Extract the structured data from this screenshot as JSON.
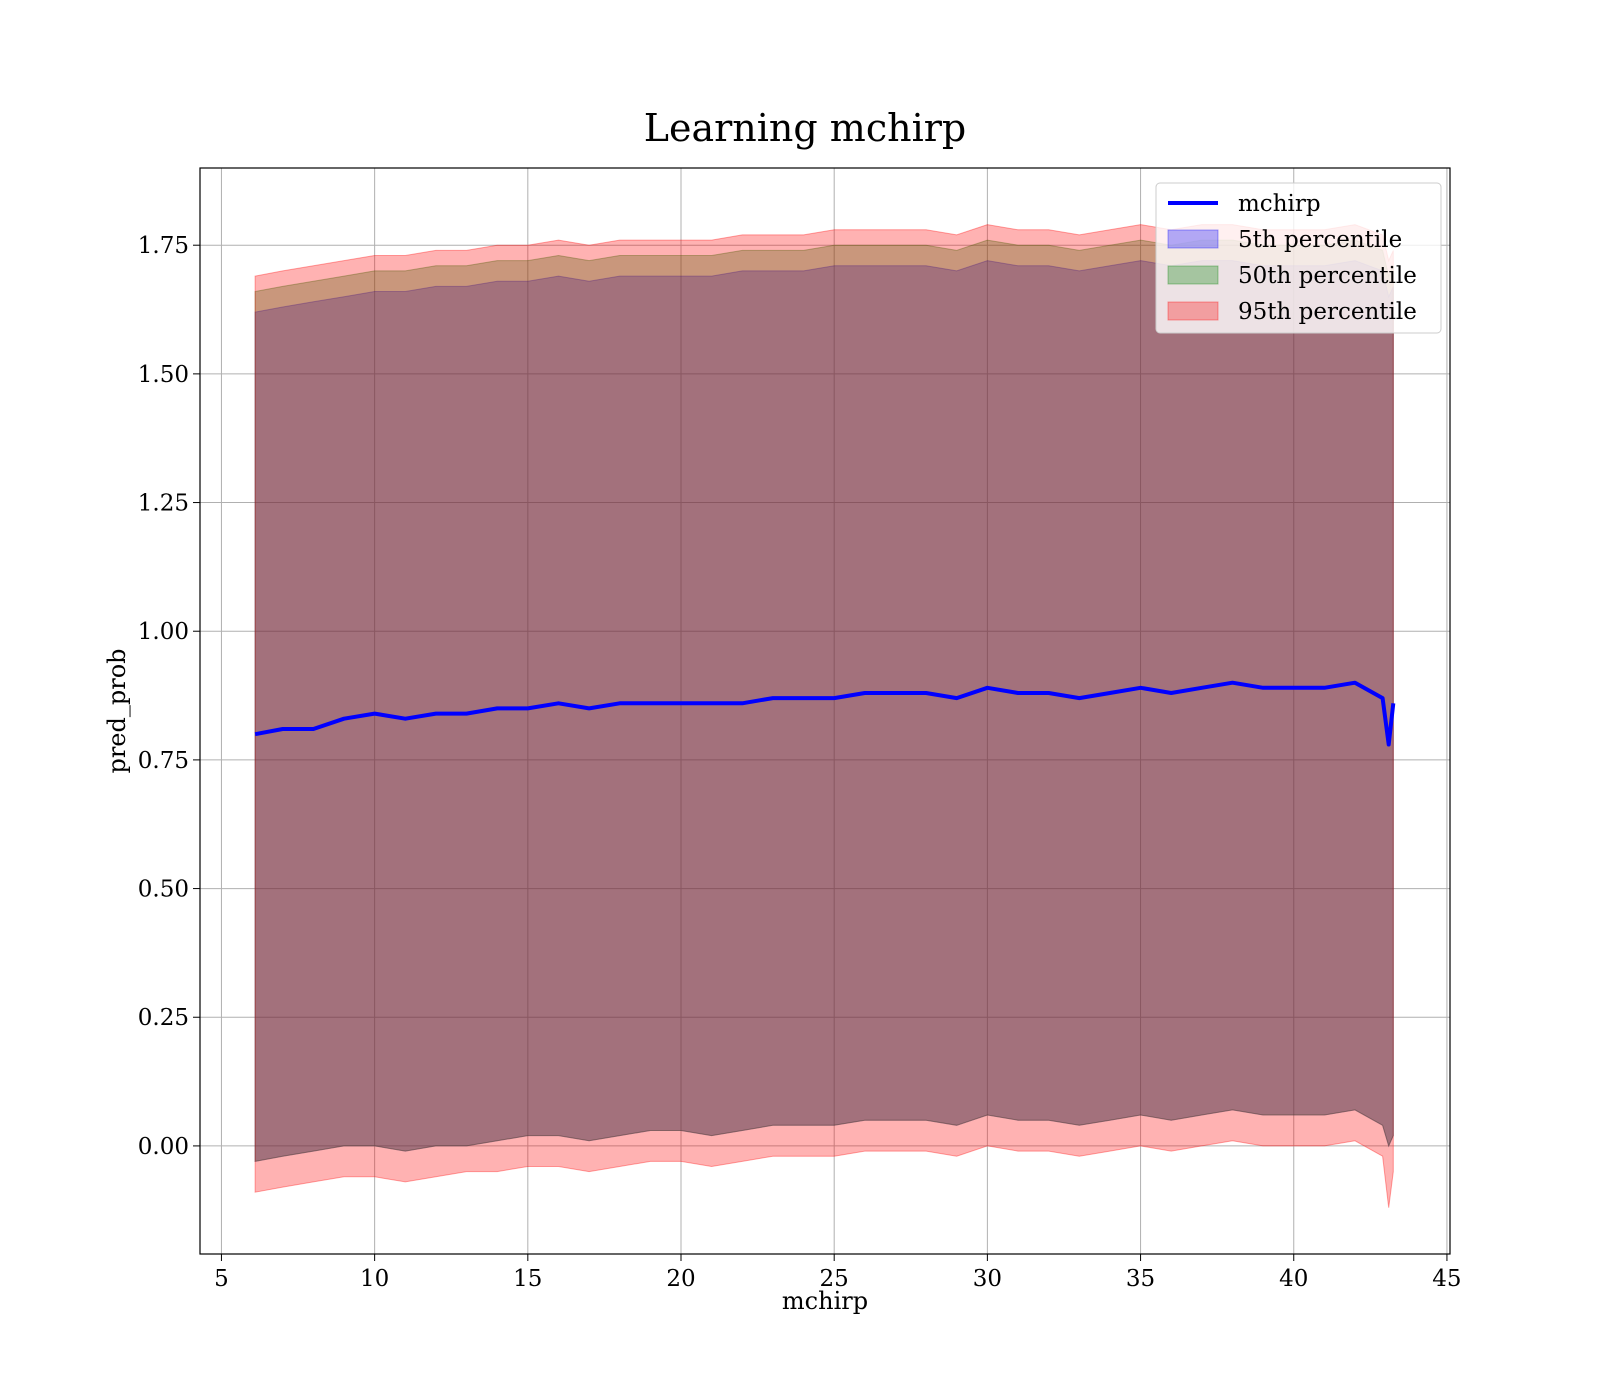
{
  "chart_data": {
    "type": "area",
    "title": "Learning mchirp",
    "xlabel": "mchirp",
    "ylabel": "pred_prob",
    "xlim": [
      4.3,
      45.1
    ],
    "ylim": [
      -0.21,
      1.9
    ],
    "grid": true,
    "legend_position": "top-right",
    "xticks": [
      5,
      10,
      15,
      20,
      25,
      30,
      35,
      40,
      45
    ],
    "yticks": [
      0.0,
      0.25,
      0.5,
      0.75,
      1.0,
      1.25,
      1.5,
      1.75
    ],
    "ytick_labels": [
      "0.00",
      "0.25",
      "0.50",
      "0.75",
      "1.00",
      "1.25",
      "1.50",
      "1.75"
    ],
    "x": [
      6.1,
      7.0,
      8.0,
      9.0,
      10.0,
      11.0,
      12.0,
      13.0,
      14.0,
      15.0,
      16.0,
      17.0,
      18.0,
      19.0,
      20.0,
      21.0,
      22.0,
      23.0,
      24.0,
      25.0,
      26.0,
      27.0,
      28.0,
      29.0,
      30.0,
      31.0,
      32.0,
      33.0,
      34.0,
      35.0,
      36.0,
      37.0,
      38.0,
      39.0,
      40.0,
      41.0,
      42.0,
      42.9,
      43.1,
      43.25
    ],
    "mean": [
      0.8,
      0.81,
      0.81,
      0.83,
      0.84,
      0.83,
      0.84,
      0.84,
      0.85,
      0.85,
      0.86,
      0.85,
      0.86,
      0.86,
      0.86,
      0.86,
      0.86,
      0.87,
      0.87,
      0.87,
      0.88,
      0.88,
      0.88,
      0.87,
      0.89,
      0.88,
      0.88,
      0.87,
      0.88,
      0.89,
      0.88,
      0.89,
      0.9,
      0.89,
      0.89,
      0.89,
      0.9,
      0.87,
      0.78,
      0.86
    ],
    "series": [
      {
        "name": "5th percentile",
        "color": "#0000ff",
        "lower": [
          -0.03,
          -0.02,
          -0.01,
          0.0,
          0.0,
          -0.01,
          0.0,
          0.0,
          0.01,
          0.02,
          0.02,
          0.01,
          0.02,
          0.03,
          0.03,
          0.02,
          0.03,
          0.04,
          0.04,
          0.04,
          0.05,
          0.05,
          0.05,
          0.04,
          0.06,
          0.05,
          0.05,
          0.04,
          0.05,
          0.06,
          0.05,
          0.06,
          0.07,
          0.06,
          0.06,
          0.06,
          0.07,
          0.04,
          0.0,
          0.02
        ],
        "upper": [
          1.62,
          1.63,
          1.64,
          1.65,
          1.66,
          1.66,
          1.67,
          1.67,
          1.68,
          1.68,
          1.69,
          1.68,
          1.69,
          1.69,
          1.69,
          1.69,
          1.7,
          1.7,
          1.7,
          1.71,
          1.71,
          1.71,
          1.71,
          1.7,
          1.72,
          1.71,
          1.71,
          1.7,
          1.71,
          1.72,
          1.71,
          1.72,
          1.72,
          1.71,
          1.71,
          1.71,
          1.72,
          1.7,
          1.65,
          1.67
        ]
      },
      {
        "name": "50th percentile",
        "color": "#008000",
        "lower": [
          -0.03,
          -0.02,
          -0.01,
          0.0,
          0.0,
          -0.01,
          0.0,
          0.0,
          0.01,
          0.02,
          0.02,
          0.01,
          0.02,
          0.03,
          0.03,
          0.02,
          0.03,
          0.04,
          0.04,
          0.04,
          0.05,
          0.05,
          0.05,
          0.04,
          0.06,
          0.05,
          0.05,
          0.04,
          0.05,
          0.06,
          0.05,
          0.06,
          0.07,
          0.06,
          0.06,
          0.06,
          0.07,
          0.04,
          0.0,
          0.02
        ],
        "upper": [
          1.66,
          1.67,
          1.68,
          1.69,
          1.7,
          1.7,
          1.71,
          1.71,
          1.72,
          1.72,
          1.73,
          1.72,
          1.73,
          1.73,
          1.73,
          1.73,
          1.74,
          1.74,
          1.74,
          1.75,
          1.75,
          1.75,
          1.75,
          1.74,
          1.76,
          1.75,
          1.75,
          1.74,
          1.75,
          1.76,
          1.75,
          1.76,
          1.76,
          1.75,
          1.75,
          1.75,
          1.76,
          1.74,
          1.69,
          1.71
        ]
      },
      {
        "name": "95th percentile",
        "color": "#ff0000",
        "lower": [
          -0.09,
          -0.08,
          -0.07,
          -0.06,
          -0.06,
          -0.07,
          -0.06,
          -0.05,
          -0.05,
          -0.04,
          -0.04,
          -0.05,
          -0.04,
          -0.03,
          -0.03,
          -0.04,
          -0.03,
          -0.02,
          -0.02,
          -0.02,
          -0.01,
          -0.01,
          -0.01,
          -0.02,
          0.0,
          -0.01,
          -0.01,
          -0.02,
          -0.01,
          0.0,
          -0.01,
          0.0,
          0.01,
          0.0,
          0.0,
          0.0,
          0.01,
          -0.02,
          -0.12,
          -0.05
        ],
        "upper": [
          1.69,
          1.7,
          1.71,
          1.72,
          1.73,
          1.73,
          1.74,
          1.74,
          1.75,
          1.75,
          1.76,
          1.75,
          1.76,
          1.76,
          1.76,
          1.76,
          1.77,
          1.77,
          1.77,
          1.78,
          1.78,
          1.78,
          1.78,
          1.77,
          1.79,
          1.78,
          1.78,
          1.77,
          1.78,
          1.79,
          1.78,
          1.79,
          1.79,
          1.78,
          1.78,
          1.78,
          1.79,
          1.77,
          1.72,
          1.74
        ]
      }
    ],
    "legend": [
      {
        "label": "mchirp",
        "kind": "line",
        "color": "#0000ff"
      },
      {
        "label": "5th percentile",
        "kind": "patch",
        "color": "#0000ff"
      },
      {
        "label": "50th percentile",
        "kind": "patch",
        "color": "#008000"
      },
      {
        "label": "95th percentile",
        "kind": "patch",
        "color": "#ff0000"
      }
    ]
  }
}
